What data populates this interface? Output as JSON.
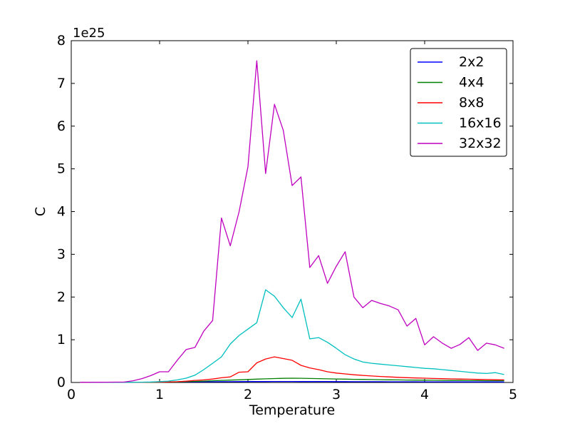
{
  "figure": {
    "background": "#ffffff"
  },
  "chart_data": {
    "type": "line",
    "title": "",
    "xlabel": "Temperature",
    "ylabel": "C",
    "y_offset_text": "1e25",
    "xlim": [
      0,
      5
    ],
    "ylim": [
      0,
      8
    ],
    "x_ticks": [
      0,
      1,
      2,
      3,
      4,
      5
    ],
    "y_ticks": [
      0,
      1,
      2,
      3,
      4,
      5,
      6,
      7,
      8
    ],
    "grid": false,
    "legend_position": "upper right",
    "x": [
      0.1,
      0.2,
      0.3,
      0.4,
      0.5,
      0.6,
      0.7,
      0.8,
      0.9,
      1.0,
      1.1,
      1.2,
      1.3,
      1.4,
      1.5,
      1.6,
      1.7,
      1.8,
      1.9,
      2.0,
      2.1,
      2.2,
      2.3,
      2.4,
      2.5,
      2.6,
      2.7,
      2.8,
      2.9,
      3.0,
      3.1,
      3.2,
      3.3,
      3.4,
      3.5,
      3.6,
      3.7,
      3.8,
      3.9,
      4.0,
      4.1,
      4.2,
      4.3,
      4.4,
      4.5,
      4.6,
      4.7,
      4.8,
      4.9
    ],
    "series": [
      {
        "name": "2x2",
        "color": "#0000ff",
        "values": [
          0.002,
          0.002,
          0.003,
          0.003,
          0.004,
          0.004,
          0.005,
          0.006,
          0.008,
          0.009,
          0.01,
          0.012,
          0.013,
          0.015,
          0.016,
          0.017,
          0.018,
          0.019,
          0.02,
          0.021,
          0.022,
          0.022,
          0.023,
          0.023,
          0.023,
          0.022,
          0.022,
          0.021,
          0.021,
          0.02,
          0.02,
          0.019,
          0.019,
          0.018,
          0.018,
          0.017,
          0.017,
          0.016,
          0.016,
          0.015,
          0.015,
          0.015,
          0.014,
          0.014,
          0.014,
          0.013,
          0.013,
          0.013,
          0.012
        ]
      },
      {
        "name": "4x4",
        "color": "#008000",
        "values": [
          0.001,
          0.001,
          0.001,
          0.001,
          0.001,
          0.001,
          0.002,
          0.003,
          0.004,
          0.006,
          0.009,
          0.013,
          0.018,
          0.025,
          0.032,
          0.04,
          0.048,
          0.055,
          0.062,
          0.07,
          0.078,
          0.086,
          0.092,
          0.097,
          0.1,
          0.098,
          0.094,
          0.09,
          0.086,
          0.082,
          0.078,
          0.074,
          0.071,
          0.068,
          0.065,
          0.062,
          0.06,
          0.057,
          0.055,
          0.053,
          0.051,
          0.049,
          0.047,
          0.046,
          0.044,
          0.043,
          0.042,
          0.041,
          0.04
        ]
      },
      {
        "name": "8x8",
        "color": "#ff0000",
        "values": [
          0.001,
          0.001,
          0.001,
          0.001,
          0.002,
          0.002,
          0.003,
          0.004,
          0.006,
          0.008,
          0.012,
          0.018,
          0.03,
          0.048,
          0.06,
          0.08,
          0.11,
          0.13,
          0.24,
          0.25,
          0.46,
          0.55,
          0.6,
          0.56,
          0.52,
          0.4,
          0.34,
          0.3,
          0.25,
          0.22,
          0.2,
          0.18,
          0.165,
          0.152,
          0.14,
          0.13,
          0.12,
          0.112,
          0.106,
          0.1,
          0.094,
          0.089,
          0.084,
          0.08,
          0.076,
          0.072,
          0.068,
          0.064,
          0.06
        ]
      },
      {
        "name": "16x16",
        "color": "#00bfbf",
        "values": [
          0.002,
          0.002,
          0.003,
          0.003,
          0.004,
          0.004,
          0.005,
          0.006,
          0.01,
          0.02,
          0.03,
          0.06,
          0.1,
          0.17,
          0.3,
          0.45,
          0.6,
          0.9,
          1.1,
          1.25,
          1.4,
          2.17,
          2.02,
          1.75,
          1.52,
          1.95,
          1.02,
          1.05,
          0.94,
          0.8,
          0.65,
          0.55,
          0.48,
          0.45,
          0.43,
          0.41,
          0.39,
          0.37,
          0.35,
          0.33,
          0.32,
          0.3,
          0.28,
          0.26,
          0.24,
          0.22,
          0.21,
          0.23,
          0.185
        ]
      },
      {
        "name": "32x32",
        "color": "#bf00bf",
        "values": [
          0.003,
          0.004,
          0.005,
          0.006,
          0.008,
          0.01,
          0.04,
          0.09,
          0.16,
          0.25,
          0.25,
          0.52,
          0.77,
          0.82,
          1.2,
          1.45,
          3.85,
          3.2,
          4.0,
          5.05,
          7.53,
          4.89,
          6.51,
          5.9,
          4.61,
          4.81,
          2.69,
          2.97,
          2.32,
          2.72,
          3.06,
          2.0,
          1.75,
          1.92,
          1.85,
          1.79,
          1.7,
          1.32,
          1.5,
          0.88,
          1.07,
          0.92,
          0.8,
          0.89,
          1.05,
          0.75,
          0.92,
          0.88,
          0.8
        ]
      }
    ]
  }
}
